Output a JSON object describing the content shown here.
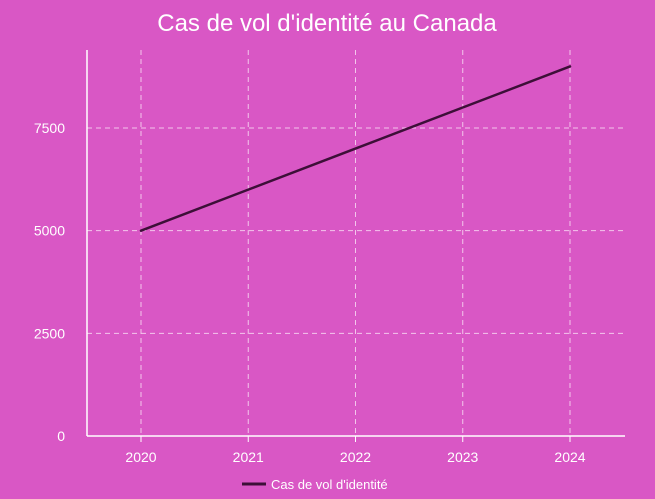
{
  "chart_data": {
    "type": "line",
    "title": "Cas de vol d'identité au Canada",
    "xlabel": "",
    "ylabel": "",
    "categories": [
      "2020",
      "2021",
      "2022",
      "2023",
      "2024"
    ],
    "series": [
      {
        "name": "Cas de vol d'identité",
        "values": [
          5000,
          6000,
          7000,
          8000,
          9000
        ],
        "color": "#3d0f38"
      }
    ],
    "yticks": [
      "0",
      "2500",
      "5000",
      "7500"
    ],
    "ylim": [
      0,
      9400
    ],
    "grid": true,
    "legend_position": "bottom-center"
  }
}
